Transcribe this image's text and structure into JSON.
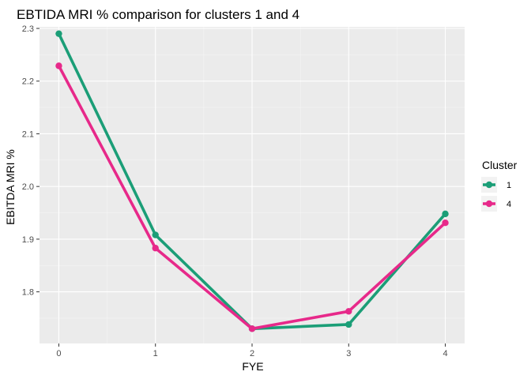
{
  "chart_data": {
    "type": "line",
    "title": "EBTIDA MRI % comparison for clusters 1 and 4",
    "xlabel": "FYE",
    "ylabel": "EBITDA MRI %",
    "x": [
      0,
      1,
      2,
      3,
      4
    ],
    "x_ticks": [
      "0",
      "1",
      "2",
      "3",
      "4"
    ],
    "y_ticks": [
      "1.8",
      "1.9",
      "2.0",
      "2.1",
      "2.2",
      "2.3"
    ],
    "xlim": [
      -0.2,
      4.2
    ],
    "ylim": [
      1.702,
      2.303
    ],
    "grid": true,
    "legend": {
      "title": "Cluster",
      "position": "right"
    },
    "series": [
      {
        "name": "1",
        "color": "#1b9e77",
        "values": [
          2.29,
          1.908,
          1.73,
          1.738,
          1.948
        ]
      },
      {
        "name": "4",
        "color": "#e7298a",
        "values": [
          2.229,
          1.883,
          1.73,
          1.763,
          1.931
        ]
      }
    ]
  }
}
